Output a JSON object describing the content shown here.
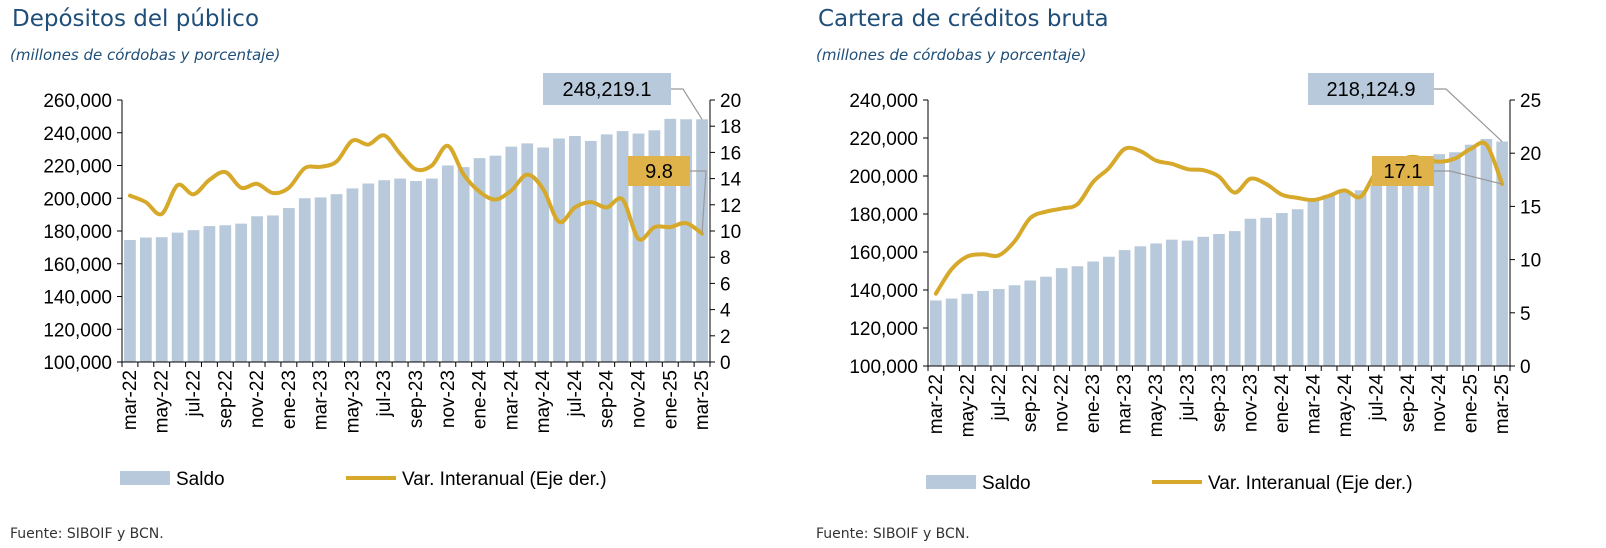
{
  "colors": {
    "bar": "#b7c9db",
    "line": "#d6a92b",
    "title": "#1f4e79",
    "callout_saldo": "#b7c9db",
    "callout_var": "#e0b34a"
  },
  "charts": [
    {
      "title": "Depósitos del público",
      "subtitle": "(millones de córdobas y porcentaje)",
      "source": "Fuente: SIBOIF y BCN.",
      "legend": {
        "bar": "Saldo",
        "line": "Var. Interanual (Eje der.)"
      },
      "callout_saldo": "248,219.1",
      "callout_var": "9.8"
    },
    {
      "title": "Cartera de créditos bruta",
      "subtitle": "(millones de córdobas y porcentaje)",
      "source": "Fuente: SIBOIF y BCN.",
      "legend": {
        "bar": "Saldo",
        "line": "Var. Interanual (Eje der.)"
      },
      "callout_saldo": "218,124.9",
      "callout_var": "17.1"
    }
  ],
  "chart_data": [
    {
      "type": "bar",
      "title": "Depósitos del público",
      "x_labels": [
        "mar-22",
        "may-22",
        "jul-22",
        "sep-22",
        "nov-22",
        "ene-23",
        "mar-23",
        "may-23",
        "jul-23",
        "sep-23",
        "nov-23",
        "ene-24",
        "mar-24",
        "may-24",
        "jul-24",
        "sep-24",
        "nov-24",
        "ene-25",
        "mar-25"
      ],
      "months": [
        "mar-22",
        "abr-22",
        "may-22",
        "jun-22",
        "jul-22",
        "ago-22",
        "sep-22",
        "oct-22",
        "nov-22",
        "dic-22",
        "ene-23",
        "feb-23",
        "mar-23",
        "abr-23",
        "may-23",
        "jun-23",
        "jul-23",
        "ago-23",
        "sep-23",
        "oct-23",
        "nov-23",
        "dic-23",
        "ene-24",
        "feb-24",
        "mar-24",
        "abr-24",
        "may-24",
        "jun-24",
        "jul-24",
        "ago-24",
        "sep-24",
        "oct-24",
        "nov-24",
        "dic-24",
        "ene-25",
        "feb-25",
        "mar-25"
      ],
      "y_left": {
        "min": 100000,
        "max": 260000,
        "step": 20000
      },
      "y_right": {
        "min": 0,
        "max": 20,
        "step": 2
      },
      "series": [
        {
          "name": "Saldo",
          "type": "bar",
          "axis": "left",
          "values": [
            174500,
            176000,
            176200,
            179000,
            180500,
            183000,
            183500,
            184500,
            189000,
            189500,
            194000,
            200000,
            200500,
            202500,
            206000,
            209000,
            211000,
            212000,
            210500,
            212000,
            220000,
            219000,
            224500,
            226000,
            231500,
            233500,
            231000,
            236500,
            238000,
            235000,
            239000,
            241000,
            239500,
            241500,
            248500,
            248219.1,
            248219.1
          ]
        },
        {
          "name": "Var. Interanual (Eje der.)",
          "type": "line",
          "axis": "right",
          "values": [
            12.7,
            12.2,
            11.3,
            13.5,
            12.8,
            13.9,
            14.5,
            13.3,
            13.6,
            12.9,
            13.3,
            14.8,
            14.9,
            15.3,
            16.9,
            16.6,
            17.3,
            15.9,
            14.7,
            15.0,
            16.5,
            14.3,
            13.0,
            12.4,
            13.1,
            14.3,
            13.2,
            10.7,
            11.8,
            12.2,
            11.8,
            12.4,
            9.4,
            10.3,
            10.3,
            10.6,
            9.8
          ]
        }
      ]
    },
    {
      "type": "bar",
      "title": "Cartera de créditos bruta",
      "x_labels": [
        "mar-22",
        "may-22",
        "jul-22",
        "sep-22",
        "nov-22",
        "ene-23",
        "mar-23",
        "may-23",
        "jul-23",
        "sep-23",
        "nov-23",
        "ene-24",
        "mar-24",
        "may-24",
        "jul-24",
        "sep-24",
        "nov-24",
        "ene-25",
        "mar-25"
      ],
      "months": [
        "mar-22",
        "abr-22",
        "may-22",
        "jun-22",
        "jul-22",
        "ago-22",
        "sep-22",
        "oct-22",
        "nov-22",
        "dic-22",
        "ene-23",
        "feb-23",
        "mar-23",
        "abr-23",
        "may-23",
        "jun-23",
        "jul-23",
        "ago-23",
        "sep-23",
        "oct-23",
        "nov-23",
        "dic-23",
        "ene-24",
        "feb-24",
        "mar-24",
        "abr-24",
        "may-24",
        "jun-24",
        "jul-24",
        "ago-24",
        "sep-24",
        "oct-24",
        "nov-24",
        "dic-24",
        "ene-25",
        "feb-25",
        "mar-25"
      ],
      "y_left": {
        "min": 100000,
        "max": 240000,
        "step": 20000
      },
      "y_right": {
        "min": 0,
        "max": 25,
        "step": 5
      },
      "series": [
        {
          "name": "Saldo",
          "type": "bar",
          "axis": "left",
          "values": [
            134500,
            135500,
            138000,
            139500,
            140500,
            142500,
            145000,
            147000,
            151500,
            152500,
            155000,
            157500,
            161000,
            163000,
            164500,
            166500,
            166000,
            168000,
            169500,
            171000,
            177500,
            178000,
            180500,
            182500,
            187000,
            190000,
            191500,
            192500,
            195500,
            197500,
            202500,
            207500,
            211500,
            212500,
            216500,
            219500,
            218124.9
          ]
        },
        {
          "name": "Var. Interanual (Eje der.)",
          "type": "line",
          "axis": "right",
          "values": [
            6.8,
            9.1,
            10.3,
            10.5,
            10.4,
            11.7,
            13.9,
            14.5,
            14.8,
            15.2,
            17.3,
            18.6,
            20.4,
            20.2,
            19.3,
            19.0,
            18.5,
            18.4,
            17.8,
            16.3,
            17.6,
            17.1,
            16.1,
            15.8,
            15.6,
            16.0,
            16.5,
            15.9,
            18.2,
            18.6,
            19.6,
            19.5,
            19.2,
            19.5,
            20.4,
            20.8,
            17.1
          ]
        }
      ]
    }
  ]
}
